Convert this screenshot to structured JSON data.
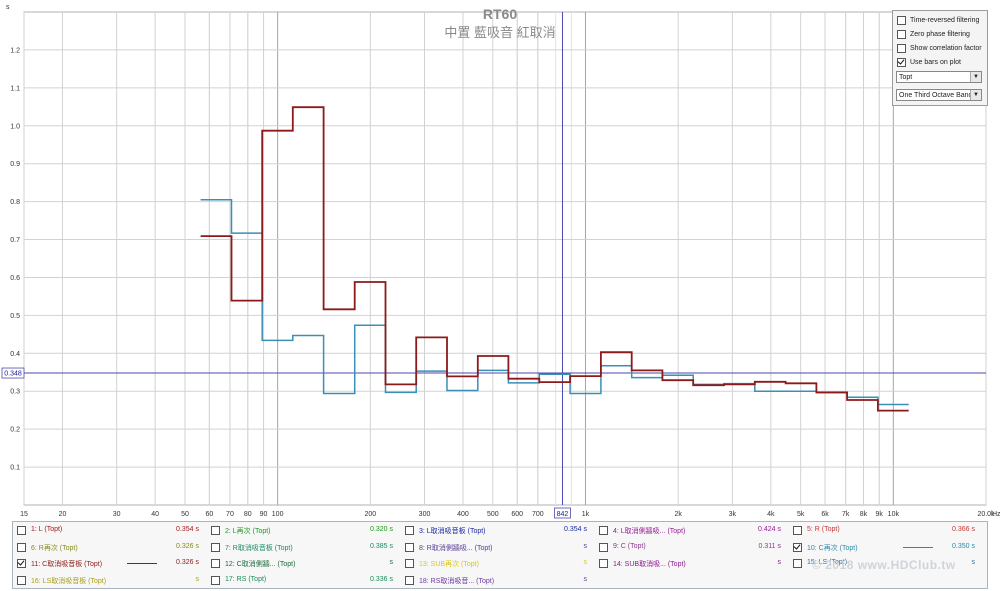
{
  "chart_data": {
    "type": "line",
    "title": "RT60",
    "subtitle": "中置 藍吸音 紅取消",
    "ylabel": "s",
    "xlabel": "Hz",
    "x_scale": "log",
    "xlim": [
      15,
      20000
    ],
    "ylim": [
      0,
      1.3
    ],
    "grid": true,
    "y_ticks": [
      "0.1",
      "0.2",
      "0.3",
      "0.4",
      "0.5",
      "0.6",
      "0.7",
      "0.8",
      "0.9",
      "1.0",
      "1.1",
      "1.2"
    ],
    "x_tick_labels": [
      {
        "v": 15,
        "t": "15"
      },
      {
        "v": 20,
        "t": "20"
      },
      {
        "v": 30,
        "t": "30"
      },
      {
        "v": 40,
        "t": "40"
      },
      {
        "v": 50,
        "t": "50"
      },
      {
        "v": 60,
        "t": "60"
      },
      {
        "v": 70,
        "t": "70"
      },
      {
        "v": 80,
        "t": "80"
      },
      {
        "v": 90,
        "t": "90"
      },
      {
        "v": 100,
        "t": "100"
      },
      {
        "v": 200,
        "t": "200"
      },
      {
        "v": 300,
        "t": "300"
      },
      {
        "v": 400,
        "t": "400"
      },
      {
        "v": 500,
        "t": "500"
      },
      {
        "v": 600,
        "t": "600"
      },
      {
        "v": 700,
        "t": "700"
      },
      {
        "v": 1000,
        "t": "1k"
      },
      {
        "v": 2000,
        "t": "2k"
      },
      {
        "v": 3000,
        "t": "3k"
      },
      {
        "v": 4000,
        "t": "4k"
      },
      {
        "v": 5000,
        "t": "5k"
      },
      {
        "v": 6000,
        "t": "6k"
      },
      {
        "v": 7000,
        "t": "7k"
      },
      {
        "v": 8000,
        "t": "8k"
      },
      {
        "v": 9000,
        "t": "9k"
      },
      {
        "v": 10000,
        "t": "10k"
      },
      {
        "v": 20000,
        "t": "20.0k"
      }
    ],
    "cursor": {
      "x": 842,
      "x_label": "842",
      "y": 0.348,
      "y_label": "0.348"
    },
    "series": [
      {
        "name": "10: C再次 (Topt)",
        "color": "#3b8fb6",
        "bands": [
          56.2,
          70.8,
          89.1,
          112,
          141,
          178,
          224,
          282,
          355,
          447,
          562,
          708,
          891,
          1122,
          1413,
          1778,
          2239,
          2818,
          3548,
          4467,
          5623,
          7079,
          8913,
          11220
        ],
        "values": [
          0.805,
          0.717,
          0.434,
          0.447,
          0.294,
          0.474,
          0.297,
          0.353,
          0.302,
          0.355,
          0.322,
          0.345,
          0.294,
          0.367,
          0.336,
          0.342,
          0.318,
          0.32,
          0.3,
          0.3,
          0.296,
          0.284,
          0.265
        ]
      },
      {
        "name": "11: C取消吸音板 (Topt)",
        "color": "#8b1a1a",
        "bands": [
          56.2,
          70.8,
          89.1,
          112,
          141,
          178,
          224,
          282,
          355,
          447,
          562,
          708,
          891,
          1122,
          1413,
          1778,
          2239,
          2818,
          3548,
          4467,
          5623,
          7079,
          8913,
          11220
        ],
        "values": [
          0.709,
          0.539,
          0.987,
          1.049,
          0.516,
          0.588,
          0.318,
          0.442,
          0.339,
          0.393,
          0.333,
          0.324,
          0.34,
          0.403,
          0.355,
          0.329,
          0.316,
          0.318,
          0.325,
          0.321,
          0.297,
          0.277,
          0.249
        ]
      }
    ]
  },
  "controls": {
    "checkboxes": [
      {
        "label": "Time-reversed filtering",
        "checked": false
      },
      {
        "label": "Zero phase filtering",
        "checked": false
      },
      {
        "label": "Show correlation factor",
        "checked": false
      },
      {
        "label": "Use bars on plot",
        "checked": true
      }
    ],
    "measure_select": "Topt",
    "band_select": "One Third Octave Bands"
  },
  "legend": [
    {
      "label": "1: L (Topt)",
      "value": "0.354 s",
      "color": "#a31a1a",
      "checked": false
    },
    {
      "label": "2: L再次 (Topt)",
      "value": "0.320 s",
      "color": "#1a9a1a",
      "checked": false
    },
    {
      "label": "3: L取消吸音板 (Topt)",
      "value": "0.354 s",
      "color": "#1a2aa0",
      "checked": false
    },
    {
      "label": "4: L取消側牆吸... (Topt)",
      "value": "0.424 s",
      "color": "#9a1a9a",
      "checked": false
    },
    {
      "label": "5: R (Topt)",
      "value": "0.366 s",
      "color": "#c23a3a",
      "checked": false
    },
    {
      "label": "6: R再次 (Topt)",
      "value": "0.326 s",
      "color": "#8a8a1a",
      "checked": false
    },
    {
      "label": "7: R取消吸音板 (Topt)",
      "value": "0.385 s",
      "color": "#1a8a6a",
      "checked": false
    },
    {
      "label": "8: R取消側牆吸... (Topt)",
      "value": "s",
      "color": "#5a3a9a",
      "checked": false
    },
    {
      "label": "9: C (Topt)",
      "value": "0.311 s",
      "color": "#8a3a8a",
      "checked": false
    },
    {
      "label": "10: C再次 (Topt)",
      "value": "0.350 s",
      "color": "#2a8aaa",
      "checked": true
    },
    {
      "label": "11: C取消吸音板 (Topt)",
      "value": "0.326 s",
      "color": "#8b1a1a",
      "checked": true
    },
    {
      "label": "12: C取消側牆... (Topt)",
      "value": "s",
      "color": "#1a6a3a",
      "checked": false
    },
    {
      "label": "13: SUB再次 (Topt)",
      "value": "s",
      "color": "#d8c81a",
      "checked": false
    },
    {
      "label": "14: SUB取消吸... (Topt)",
      "value": "s",
      "color": "#8a1a8a",
      "checked": false
    },
    {
      "label": "15: LS (Topt)",
      "value": "s",
      "color": "#3a6a9a",
      "checked": false
    },
    {
      "label": "16: LS取消吸音板 (Topt)",
      "value": "s",
      "color": "#a8a01a",
      "checked": false
    },
    {
      "label": "17: RS (Topt)",
      "value": "0.336 s",
      "color": "#1a8a5a",
      "checked": false
    },
    {
      "label": "18: RS取消吸音... (Topt)",
      "value": "s",
      "color": "#6a3aa0",
      "checked": false
    }
  ],
  "watermark": "© 2018 www.HDClub.tw"
}
